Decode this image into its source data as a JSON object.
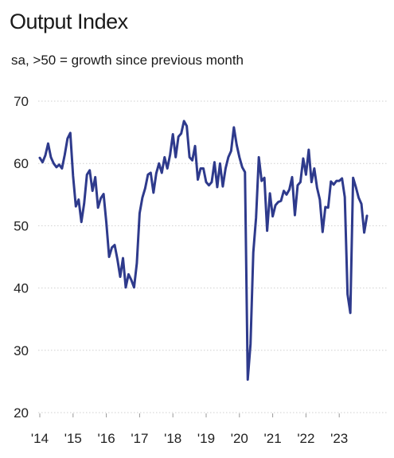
{
  "chart_data": {
    "type": "line",
    "title": "Output Index",
    "subtitle": "sa, >50 = growth since previous month",
    "xlabel": "",
    "ylabel": "",
    "ylim": [
      20,
      70
    ],
    "yticks": [
      20,
      30,
      40,
      50,
      60,
      70
    ],
    "xtick_labels": [
      "'14",
      "'15",
      "'16",
      "'17",
      "'18",
      "'19",
      "'20",
      "'21",
      "'22",
      "'23"
    ],
    "x_start": "2014-01",
    "grid": true,
    "legend": "none",
    "line_color": "#2e3a8c",
    "series": [
      {
        "values": [
          60.9,
          60.2,
          61.3,
          63.2,
          61.0,
          60.0,
          59.4,
          59.8,
          59.2,
          61.4,
          64.0,
          64.9,
          58.0,
          53.1,
          54.2,
          50.6,
          53.6,
          58.2,
          58.9,
          55.6,
          57.8,
          52.9,
          54.4,
          55.1,
          50.5,
          45.0,
          46.5,
          46.9,
          44.6,
          41.8,
          44.8,
          40.1,
          42.2,
          41.3,
          40.1,
          44.0,
          52.0,
          54.5,
          56.0,
          58.2,
          58.5,
          55.3,
          58.4,
          60.0,
          58.5,
          61.0,
          59.2,
          61.4,
          64.7,
          61.0,
          64.3,
          64.8,
          66.8,
          66.0,
          61.0,
          60.5,
          62.8,
          57.4,
          59.2,
          59.2,
          57.0,
          56.5,
          57.0,
          60.2,
          56.2,
          60.0,
          56.3,
          59.2,
          61.0,
          62.0,
          65.8,
          63.0,
          61.0,
          59.4,
          58.6,
          25.3,
          31.0,
          45.7,
          51.3,
          61.0,
          57.2,
          57.7,
          49.2,
          55.2,
          51.5,
          53.3,
          53.8,
          54.0,
          55.6,
          55.0,
          55.8,
          57.8,
          51.7,
          56.5,
          57.0,
          60.8,
          58.2,
          62.2,
          57.0,
          59.2,
          56.1,
          54.2,
          49.0,
          53.0,
          52.9,
          57.1,
          56.6,
          57.2,
          57.2,
          57.6,
          54.6,
          39.0,
          36.0,
          57.7,
          56.2,
          54.5,
          53.5,
          48.9,
          51.6
        ]
      }
    ]
  }
}
